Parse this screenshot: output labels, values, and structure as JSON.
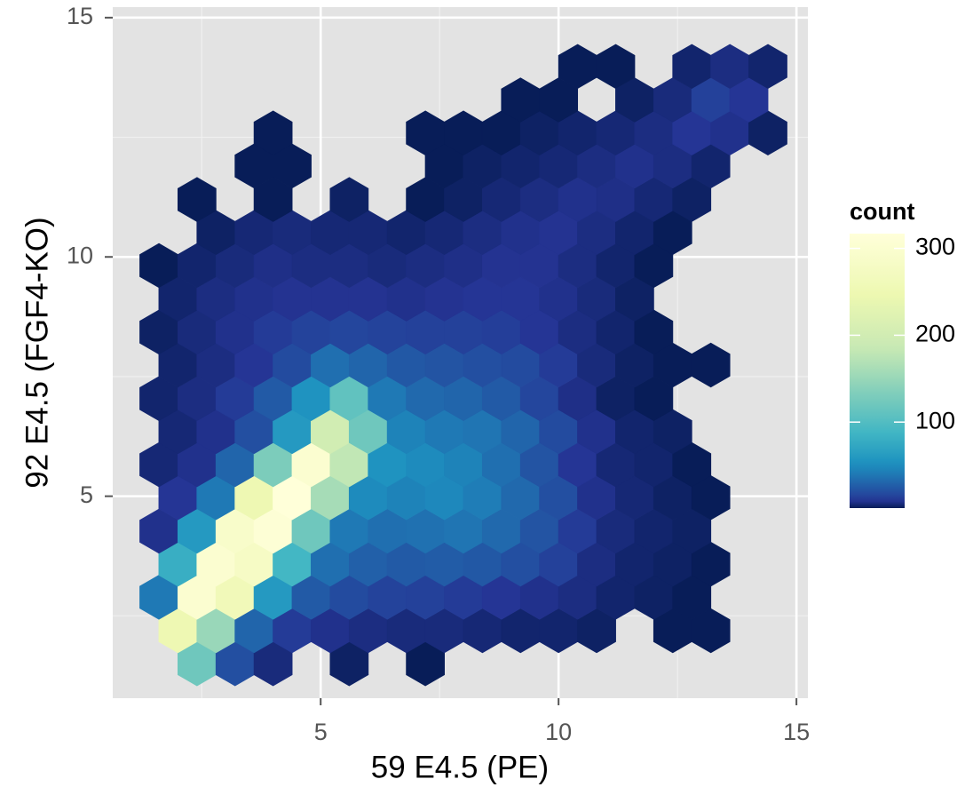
{
  "chart_data": {
    "type": "hexbin",
    "x_label": "59 E4.5 (PE)",
    "y_label": "92 E4.5 (FGF4-KO)",
    "legend_title": "count",
    "xlim": [
      0.63,
      15.24
    ],
    "ylim": [
      0.78,
      15.22
    ],
    "xticks": [
      5,
      10,
      15
    ],
    "yticks": [
      5,
      10,
      15
    ],
    "xminor": [
      2.5,
      7.5,
      12.5
    ],
    "yminor": [
      2.5,
      7.5,
      12.5
    ],
    "grid": true,
    "fill_trans": "sqrt",
    "fill_lim": [
      1,
      317
    ],
    "fill_ticks": [
      100,
      200,
      300
    ],
    "palette": [
      "#081d58",
      "#253494",
      "#225ea8",
      "#1d91c0",
      "#41b6c4",
      "#7fcdbb",
      "#c7e9b4",
      "#edf8b1",
      "#ffffd9"
    ],
    "x": [
      2.4,
      3.2,
      4.0,
      5.6,
      7.2,
      2.0,
      2.8,
      3.6,
      4.4,
      5.2,
      6.0,
      6.8,
      7.6,
      8.4,
      9.2,
      10.0,
      10.8,
      12.4,
      13.2,
      1.6,
      2.4,
      3.2,
      4.0,
      4.8,
      5.6,
      6.4,
      7.2,
      8.0,
      8.8,
      9.6,
      10.4,
      11.2,
      12.0,
      12.8,
      2.0,
      2.8,
      3.6,
      4.4,
      5.2,
      6.0,
      6.8,
      7.6,
      8.4,
      9.2,
      10.0,
      10.8,
      11.6,
      12.4,
      13.2,
      1.6,
      2.4,
      3.2,
      4.0,
      4.8,
      5.6,
      6.4,
      7.2,
      8.0,
      8.8,
      9.6,
      10.4,
      11.2,
      12.0,
      12.8,
      2.0,
      2.8,
      3.6,
      4.4,
      5.2,
      6.0,
      6.8,
      7.6,
      8.4,
      9.2,
      10.0,
      10.8,
      11.6,
      12.4,
      13.2,
      1.6,
      2.4,
      3.2,
      4.0,
      4.8,
      5.6,
      6.4,
      7.2,
      8.0,
      8.8,
      9.6,
      10.4,
      11.2,
      12.0,
      12.8,
      2.0,
      2.8,
      3.6,
      4.4,
      5.2,
      6.0,
      6.8,
      7.6,
      8.4,
      9.2,
      10.0,
      10.8,
      11.6,
      12.4,
      1.6,
      2.4,
      3.2,
      4.0,
      4.8,
      5.6,
      6.4,
      7.2,
      8.0,
      8.8,
      9.6,
      10.4,
      11.2,
      12.0,
      2.0,
      2.8,
      3.6,
      4.4,
      5.2,
      6.0,
      6.8,
      7.6,
      8.4,
      9.2,
      10.0,
      10.8,
      11.6,
      12.4,
      13.2,
      1.6,
      2.4,
      3.2,
      4.0,
      4.8,
      5.6,
      6.4,
      7.2,
      8.0,
      8.8,
      9.6,
      10.4,
      11.2,
      12.0,
      2.0,
      2.8,
      3.6,
      4.4,
      5.2,
      6.0,
      6.8,
      7.6,
      8.4,
      9.2,
      10.0,
      10.8,
      11.6,
      1.6,
      2.4,
      3.2,
      4.0,
      4.8,
      5.6,
      6.4,
      7.2,
      8.0,
      8.8,
      9.6,
      10.4,
      11.2,
      12.0,
      2.8,
      3.6,
      4.4,
      5.2,
      6.0,
      6.8,
      7.6,
      8.4,
      9.2,
      10.0,
      10.8,
      11.6,
      12.4,
      2.4,
      4.0,
      5.6,
      7.2,
      8.0,
      8.8,
      9.6,
      10.4,
      11.2,
      12.0,
      12.8,
      3.6,
      4.4,
      7.6,
      8.4,
      9.2,
      10.0,
      10.8,
      11.6,
      12.4,
      13.2,
      4.0,
      7.2,
      8.0,
      8.8,
      9.6,
      10.4,
      11.2,
      12.0,
      12.8,
      13.6,
      14.4,
      9.2,
      10.0,
      11.6,
      12.4,
      13.2,
      14.0,
      10.4,
      11.2,
      12.8,
      13.6,
      14.4
    ],
    "y": [
      1.5,
      1.5,
      1.5,
      1.5,
      1.5,
      2.19,
      2.19,
      2.19,
      2.19,
      2.19,
      2.19,
      2.19,
      2.19,
      2.19,
      2.19,
      2.19,
      2.19,
      2.19,
      2.19,
      2.89,
      2.89,
      2.89,
      2.89,
      2.89,
      2.89,
      2.89,
      2.89,
      2.89,
      2.89,
      2.89,
      2.89,
      2.89,
      2.89,
      2.89,
      3.58,
      3.58,
      3.58,
      3.58,
      3.58,
      3.58,
      3.58,
      3.58,
      3.58,
      3.58,
      3.58,
      3.58,
      3.58,
      3.58,
      3.58,
      4.27,
      4.27,
      4.27,
      4.27,
      4.27,
      4.27,
      4.27,
      4.27,
      4.27,
      4.27,
      4.27,
      4.27,
      4.27,
      4.27,
      4.27,
      4.97,
      4.97,
      4.97,
      4.97,
      4.97,
      4.97,
      4.97,
      4.97,
      4.97,
      4.97,
      4.97,
      4.97,
      4.97,
      4.97,
      4.97,
      5.66,
      5.66,
      5.66,
      5.66,
      5.66,
      5.66,
      5.66,
      5.66,
      5.66,
      5.66,
      5.66,
      5.66,
      5.66,
      5.66,
      5.66,
      6.35,
      6.35,
      6.35,
      6.35,
      6.35,
      6.35,
      6.35,
      6.35,
      6.35,
      6.35,
      6.35,
      6.35,
      6.35,
      6.35,
      7.04,
      7.04,
      7.04,
      7.04,
      7.04,
      7.04,
      7.04,
      7.04,
      7.04,
      7.04,
      7.04,
      7.04,
      7.04,
      7.04,
      7.74,
      7.74,
      7.74,
      7.74,
      7.74,
      7.74,
      7.74,
      7.74,
      7.74,
      7.74,
      7.74,
      7.74,
      7.74,
      7.74,
      7.74,
      8.43,
      8.43,
      8.43,
      8.43,
      8.43,
      8.43,
      8.43,
      8.43,
      8.43,
      8.43,
      8.43,
      8.43,
      8.43,
      8.43,
      9.12,
      9.12,
      9.12,
      9.12,
      9.12,
      9.12,
      9.12,
      9.12,
      9.12,
      9.12,
      9.12,
      9.12,
      9.12,
      9.82,
      9.82,
      9.82,
      9.82,
      9.82,
      9.82,
      9.82,
      9.82,
      9.82,
      9.82,
      9.82,
      9.82,
      9.82,
      9.82,
      10.51,
      10.51,
      10.51,
      10.51,
      10.51,
      10.51,
      10.51,
      10.51,
      10.51,
      10.51,
      10.51,
      10.51,
      10.51,
      11.2,
      11.2,
      11.2,
      11.2,
      11.2,
      11.2,
      11.2,
      11.2,
      11.2,
      11.2,
      11.2,
      11.9,
      11.9,
      11.9,
      11.9,
      11.9,
      11.9,
      11.9,
      11.9,
      11.9,
      11.9,
      12.59,
      12.59,
      12.59,
      12.59,
      12.59,
      12.59,
      12.59,
      12.59,
      12.59,
      12.59,
      12.59,
      13.28,
      13.28,
      13.28,
      13.28,
      13.28,
      13.28,
      13.98,
      13.98,
      13.98,
      13.98,
      13.98
    ],
    "values": [
      120,
      20,
      5,
      2,
      1,
      250,
      150,
      30,
      12,
      8,
      6,
      5,
      5,
      4,
      3,
      3,
      2,
      1,
      1,
      40,
      300,
      260,
      60,
      25,
      18,
      15,
      14,
      12,
      10,
      8,
      6,
      3,
      2,
      1,
      80,
      300,
      280,
      90,
      35,
      28,
      25,
      26,
      24,
      20,
      14,
      6,
      3,
      2,
      1,
      8,
      60,
      290,
      310,
      120,
      40,
      35,
      36,
      38,
      32,
      22,
      12,
      5,
      3,
      2,
      10,
      40,
      250,
      317,
      160,
      50,
      45,
      48,
      42,
      32,
      20,
      8,
      4,
      2,
      1,
      4,
      8,
      30,
      130,
      300,
      180,
      55,
      50,
      45,
      35,
      22,
      10,
      4,
      3,
      1,
      4,
      8,
      20,
      60,
      200,
      120,
      45,
      40,
      38,
      30,
      18,
      8,
      3,
      2,
      3,
      6,
      12,
      25,
      55,
      110,
      40,
      32,
      30,
      25,
      16,
      7,
      2,
      1,
      3,
      6,
      10,
      18,
      35,
      30,
      24,
      22,
      20,
      18,
      12,
      5,
      2,
      1,
      1,
      2,
      5,
      8,
      12,
      15,
      16,
      15,
      14,
      14,
      13,
      10,
      6,
      3,
      1,
      3,
      6,
      8,
      9,
      9,
      9,
      8,
      9,
      10,
      10,
      8,
      5,
      2,
      1,
      3,
      5,
      7,
      6,
      6,
      5,
      6,
      7,
      9,
      9,
      6,
      3,
      1,
      2,
      4,
      5,
      4,
      4,
      3,
      4,
      6,
      8,
      9,
      6,
      3,
      1,
      1,
      1,
      2,
      1,
      2,
      4,
      6,
      8,
      7,
      4,
      2,
      1,
      1,
      1,
      2,
      3,
      4,
      6,
      8,
      6,
      3,
      1,
      1,
      1,
      1,
      2,
      3,
      4,
      6,
      10,
      8,
      2,
      1,
      1,
      2,
      5,
      14,
      10,
      1,
      1,
      3,
      6,
      3
    ]
  }
}
